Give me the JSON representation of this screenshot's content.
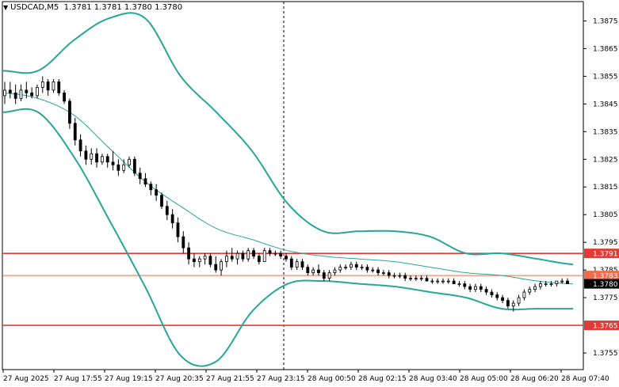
{
  "header": {
    "symbol_timeframe": "USDCAD,M5",
    "ohlc": "1.3781 1.3781 1.3780 1.3780",
    "menu_icon": "triangle-down-icon"
  },
  "chart_data": {
    "type": "candlestick",
    "symbol": "USDCAD",
    "timeframe": "M5",
    "ylim": [
      1.3749,
      1.3882
    ],
    "y_ticks": [
      "1.3875",
      "1.3865",
      "1.3855",
      "1.3845",
      "1.3835",
      "1.3825",
      "1.3815",
      "1.3805",
      "1.3795",
      "1.3785",
      "1.3775",
      "1.3755"
    ],
    "x_ticks": [
      "27 Aug 2025",
      "27 Aug 17:55",
      "27 Aug 19:15",
      "27 Aug 20:35",
      "27 Aug 21:55",
      "27 Aug 23:15",
      "28 Aug 00:50",
      "28 Aug 02:15",
      "28 Aug 03:40",
      "28 Aug 05:00",
      "28 Aug 06:20",
      "28 Aug 07:40"
    ],
    "horizontal_lines": [
      {
        "price": 1.3791,
        "label": "1.3791",
        "color": "#e53935"
      },
      {
        "price": 1.3765,
        "label": "1.3765",
        "color": "#e53935"
      },
      {
        "price": 1.3783,
        "label": "1.3783",
        "color": "#ef6c4d"
      }
    ],
    "last_price": {
      "price": 1.378,
      "label": "1.3780"
    },
    "colors": {
      "bands": "#26a69a",
      "middle": "#26a69a",
      "candles": "#000000",
      "level": "#e53935",
      "grid": "#000000"
    },
    "bollinger_upper": [
      1.3857,
      1.3857,
      1.3868,
      1.3876,
      1.3876,
      1.3855,
      1.3842,
      1.3828,
      1.3809,
      1.3799,
      1.3799,
      1.3799,
      1.3797,
      1.3791,
      1.3791,
      1.3789,
      1.3787
    ],
    "bollinger_middle": [
      1.3849,
      1.3847,
      1.3841,
      1.3829,
      1.3817,
      1.3808,
      1.38,
      1.3796,
      1.3792,
      1.379,
      1.3789,
      1.3788,
      1.3786,
      1.3784,
      1.3783,
      1.3781,
      1.378
    ],
    "bollinger_lower": [
      1.3842,
      1.3842,
      1.3826,
      1.3803,
      1.3779,
      1.3754,
      1.3752,
      1.377,
      1.378,
      1.3781,
      1.378,
      1.3779,
      1.3777,
      1.3775,
      1.3771,
      1.3771,
      1.3771
    ],
    "candles": [
      [
        1.3848,
        1.3853,
        1.3845,
        1.385
      ],
      [
        1.385,
        1.3853,
        1.3847,
        1.3849
      ],
      [
        1.3849,
        1.3852,
        1.3845,
        1.3847
      ],
      [
        1.3847,
        1.3852,
        1.3846,
        1.385
      ],
      [
        1.385,
        1.3853,
        1.3847,
        1.3849
      ],
      [
        1.3849,
        1.3851,
        1.3847,
        1.3848
      ],
      [
        1.3848,
        1.3852,
        1.3847,
        1.3851
      ],
      [
        1.3851,
        1.3855,
        1.3849,
        1.3853
      ],
      [
        1.3853,
        1.3854,
        1.3848,
        1.385
      ],
      [
        1.385,
        1.3854,
        1.3849,
        1.3853
      ],
      [
        1.3853,
        1.3854,
        1.3848,
        1.3849
      ],
      [
        1.3849,
        1.385,
        1.3845,
        1.3846
      ],
      [
        1.3846,
        1.3847,
        1.3836,
        1.3838
      ],
      [
        1.3838,
        1.384,
        1.383,
        1.3832
      ],
      [
        1.3832,
        1.3834,
        1.3826,
        1.3828
      ],
      [
        1.3828,
        1.383,
        1.3823,
        1.3825
      ],
      [
        1.3825,
        1.3829,
        1.3823,
        1.3827
      ],
      [
        1.3827,
        1.3829,
        1.3822,
        1.3824
      ],
      [
        1.3824,
        1.3827,
        1.3823,
        1.3826
      ],
      [
        1.3826,
        1.3827,
        1.3822,
        1.3824
      ],
      [
        1.3824,
        1.3828,
        1.3821,
        1.3823
      ],
      [
        1.3823,
        1.3825,
        1.3819,
        1.3821
      ],
      [
        1.3821,
        1.3825,
        1.382,
        1.3823
      ],
      [
        1.3823,
        1.3826,
        1.3822,
        1.3825
      ],
      [
        1.3825,
        1.3826,
        1.3819,
        1.382
      ],
      [
        1.382,
        1.3822,
        1.3816,
        1.3818
      ],
      [
        1.3818,
        1.382,
        1.3815,
        1.3816
      ],
      [
        1.3816,
        1.3817,
        1.3812,
        1.3814
      ],
      [
        1.3814,
        1.3816,
        1.381,
        1.3812
      ],
      [
        1.3812,
        1.3813,
        1.3807,
        1.3808
      ],
      [
        1.3808,
        1.381,
        1.3803,
        1.3805
      ],
      [
        1.3805,
        1.3807,
        1.38,
        1.3802
      ],
      [
        1.3802,
        1.3804,
        1.3795,
        1.3797
      ],
      [
        1.3797,
        1.3799,
        1.3791,
        1.3793
      ],
      [
        1.3793,
        1.3795,
        1.3787,
        1.3789
      ],
      [
        1.3789,
        1.3791,
        1.3786,
        1.3788
      ],
      [
        1.3788,
        1.379,
        1.3786,
        1.3789
      ],
      [
        1.3789,
        1.3791,
        1.3787,
        1.379
      ],
      [
        1.379,
        1.3791,
        1.3786,
        1.3787
      ],
      [
        1.3787,
        1.379,
        1.3784,
        1.3785
      ],
      [
        1.3785,
        1.3789,
        1.3783,
        1.3788
      ],
      [
        1.3788,
        1.3792,
        1.3786,
        1.379
      ],
      [
        1.379,
        1.3793,
        1.3788,
        1.3789
      ],
      [
        1.3789,
        1.3792,
        1.3787,
        1.3791
      ],
      [
        1.3791,
        1.3792,
        1.3788,
        1.3789
      ],
      [
        1.3789,
        1.3793,
        1.3788,
        1.3792
      ],
      [
        1.3792,
        1.3793,
        1.3789,
        1.379
      ],
      [
        1.379,
        1.3791,
        1.3787,
        1.3788
      ],
      [
        1.3788,
        1.3793,
        1.3788,
        1.3792
      ],
      [
        1.3792,
        1.3793,
        1.379,
        1.3791
      ],
      [
        1.3791,
        1.3792,
        1.379,
        1.3791
      ],
      [
        1.3791,
        1.3792,
        1.3789,
        1.379
      ],
      [
        1.379,
        1.3791,
        1.3788,
        1.3789
      ],
      [
        1.3789,
        1.379,
        1.3785,
        1.3786
      ],
      [
        1.3786,
        1.3789,
        1.3785,
        1.3788
      ],
      [
        1.3788,
        1.3789,
        1.3785,
        1.3786
      ],
      [
        1.3786,
        1.3787,
        1.3783,
        1.3784
      ],
      [
        1.3784,
        1.3786,
        1.3783,
        1.3785
      ],
      [
        1.3785,
        1.3787,
        1.3783,
        1.3784
      ],
      [
        1.3784,
        1.3785,
        1.3781,
        1.3782
      ],
      [
        1.3782,
        1.3785,
        1.3781,
        1.3784
      ],
      [
        1.3784,
        1.3786,
        1.3783,
        1.3785
      ],
      [
        1.3785,
        1.3787,
        1.3784,
        1.3786
      ],
      [
        1.3786,
        1.3787,
        1.3785,
        1.3786
      ],
      [
        1.3786,
        1.3788,
        1.3785,
        1.3787
      ],
      [
        1.3787,
        1.3788,
        1.3785,
        1.3786
      ],
      [
        1.3786,
        1.3787,
        1.3785,
        1.3786
      ],
      [
        1.3786,
        1.3787,
        1.3784,
        1.3785
      ],
      [
        1.3785,
        1.3786,
        1.3784,
        1.3785
      ],
      [
        1.3785,
        1.3786,
        1.3783,
        1.3784
      ],
      [
        1.3784,
        1.3785,
        1.3783,
        1.3784
      ],
      [
        1.3784,
        1.3785,
        1.3782,
        1.3783
      ],
      [
        1.3783,
        1.3784,
        1.3782,
        1.3783
      ],
      [
        1.3783,
        1.3784,
        1.3782,
        1.3783
      ],
      [
        1.3783,
        1.3784,
        1.3781,
        1.3782
      ],
      [
        1.3782,
        1.3783,
        1.3781,
        1.3782
      ],
      [
        1.3782,
        1.3783,
        1.3781,
        1.3782
      ],
      [
        1.3782,
        1.3783,
        1.3781,
        1.3782
      ],
      [
        1.3782,
        1.3783,
        1.3781,
        1.3781
      ],
      [
        1.3781,
        1.3782,
        1.378,
        1.3781
      ],
      [
        1.3781,
        1.3782,
        1.378,
        1.3781
      ],
      [
        1.3781,
        1.3782,
        1.378,
        1.3781
      ],
      [
        1.3781,
        1.3782,
        1.378,
        1.3781
      ],
      [
        1.3781,
        1.3782,
        1.378,
        1.378
      ],
      [
        1.378,
        1.3781,
        1.3779,
        1.378
      ],
      [
        1.378,
        1.3781,
        1.3778,
        1.3779
      ],
      [
        1.3779,
        1.378,
        1.3777,
        1.3778
      ],
      [
        1.3778,
        1.378,
        1.3777,
        1.3779
      ],
      [
        1.3779,
        1.378,
        1.3777,
        1.3778
      ],
      [
        1.3778,
        1.3779,
        1.3776,
        1.3777
      ],
      [
        1.3777,
        1.3778,
        1.3775,
        1.3776
      ],
      [
        1.3776,
        1.3777,
        1.3774,
        1.3775
      ],
      [
        1.3775,
        1.3776,
        1.3773,
        1.3774
      ],
      [
        1.3774,
        1.3775,
        1.3771,
        1.3772
      ],
      [
        1.3772,
        1.3774,
        1.377,
        1.3773
      ],
      [
        1.3773,
        1.3776,
        1.3772,
        1.3775
      ],
      [
        1.3775,
        1.3778,
        1.3774,
        1.3777
      ],
      [
        1.3777,
        1.3779,
        1.3776,
        1.3778
      ],
      [
        1.3778,
        1.378,
        1.3777,
        1.3779
      ],
      [
        1.3779,
        1.3781,
        1.3778,
        1.378
      ],
      [
        1.378,
        1.3781,
        1.3779,
        1.378
      ],
      [
        1.378,
        1.3781,
        1.3779,
        1.378
      ],
      [
        1.378,
        1.3781,
        1.3779,
        1.3781
      ],
      [
        1.3781,
        1.3782,
        1.378,
        1.3781
      ],
      [
        1.3781,
        1.3782,
        1.378,
        1.378
      ]
    ]
  }
}
